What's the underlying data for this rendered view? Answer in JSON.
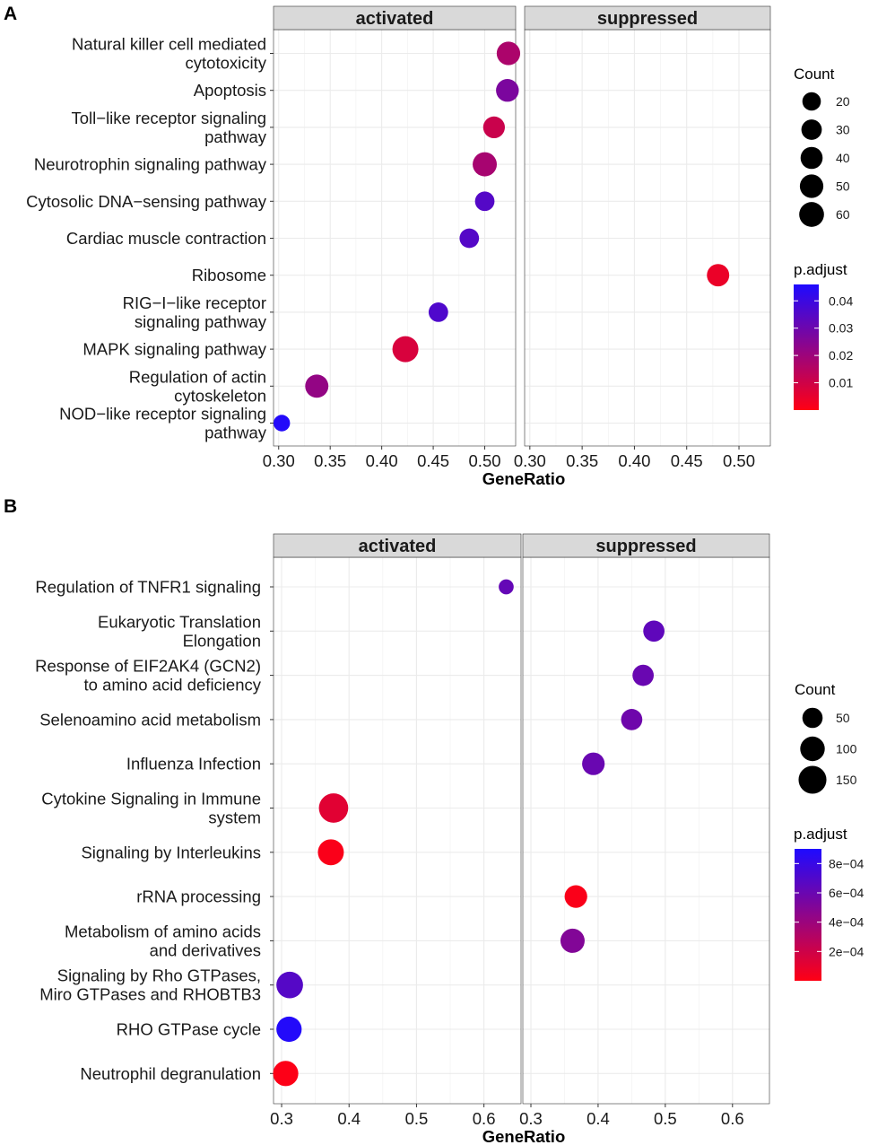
{
  "chart_data": [
    {
      "type": "scatter",
      "panel": "A",
      "facets": [
        "activated",
        "suppressed"
      ],
      "xlabel": "GeneRatio",
      "xticks": [
        "0.30",
        "0.35",
        "0.40",
        "0.45",
        "0.50"
      ],
      "xticks_values": [
        0.3,
        0.35,
        0.4,
        0.45,
        0.5
      ],
      "xlim": [
        0.295,
        0.53
      ],
      "categories": [
        [
          "Natural killer cell mediated",
          "cytotoxicity"
        ],
        [
          "Apoptosis"
        ],
        [
          "Toll−like receptor signaling",
          "pathway"
        ],
        [
          "Neurotrophin signaling pathway"
        ],
        [
          "Cytosolic DNA−sensing pathway"
        ],
        [
          "Cardiac muscle contraction"
        ],
        [
          "Ribosome"
        ],
        [
          "RIG−I−like receptor",
          "signaling pathway"
        ],
        [
          "MAPK signaling pathway"
        ],
        [
          "Regulation of actin",
          "cytoskeleton"
        ],
        [
          "NOD−like receptor signaling",
          "pathway"
        ]
      ],
      "points": [
        {
          "facet": "activated",
          "cat": 0,
          "x": 0.523,
          "count": 50,
          "padj": 0.017
        },
        {
          "facet": "activated",
          "cat": 1,
          "x": 0.522,
          "count": 45,
          "padj": 0.027
        },
        {
          "facet": "activated",
          "cat": 2,
          "x": 0.509,
          "count": 38,
          "padj": 0.011
        },
        {
          "facet": "activated",
          "cat": 3,
          "x": 0.5,
          "count": 55,
          "padj": 0.018
        },
        {
          "facet": "activated",
          "cat": 4,
          "x": 0.5,
          "count": 25,
          "padj": 0.035
        },
        {
          "facet": "activated",
          "cat": 5,
          "x": 0.485,
          "count": 25,
          "padj": 0.035
        },
        {
          "facet": "suppressed",
          "cat": 6,
          "x": 0.48,
          "count": 42,
          "padj": 0.004
        },
        {
          "facet": "activated",
          "cat": 7,
          "x": 0.455,
          "count": 25,
          "padj": 0.036
        },
        {
          "facet": "activated",
          "cat": 8,
          "x": 0.423,
          "count": 70,
          "padj": 0.008
        },
        {
          "facet": "activated",
          "cat": 9,
          "x": 0.337,
          "count": 48,
          "padj": 0.022
        },
        {
          "facet": "activated",
          "cat": 10,
          "x": 0.303,
          "count": 12,
          "padj": 0.045
        }
      ],
      "legend_count": {
        "title": "Count",
        "items": [
          {
            "label": "20",
            "v": 20
          },
          {
            "label": "30",
            "v": 30
          },
          {
            "label": "40",
            "v": 40
          },
          {
            "label": "50",
            "v": 50
          },
          {
            "label": "60",
            "v": 60
          }
        ],
        "max": 70
      },
      "legend_padj": {
        "title": "p.adjust",
        "ticks": [
          {
            "label": "0.04",
            "v": 0.04
          },
          {
            "label": "0.03",
            "v": 0.03
          },
          {
            "label": "0.02",
            "v": 0.02
          },
          {
            "label": "0.01",
            "v": 0.01
          }
        ],
        "min": 0.0,
        "max": 0.046
      }
    },
    {
      "type": "scatter",
      "panel": "B",
      "facets": [
        "activated",
        "suppressed"
      ],
      "xlabel": "GeneRatio",
      "xticks": [
        "0.3",
        "0.4",
        "0.5",
        "0.6"
      ],
      "xticks_values": [
        0.3,
        0.4,
        0.5,
        0.6
      ],
      "xlim": [
        0.288,
        0.655
      ],
      "categories": [
        [
          "Regulation of TNFR1 signaling"
        ],
        [
          "Eukaryotic Translation",
          "Elongation"
        ],
        [
          "Response of EIF2AK4 (GCN2)",
          "to amino acid deficiency"
        ],
        [
          "Selenoamino acid metabolism"
        ],
        [
          "Influenza Infection"
        ],
        [
          "Cytokine Signaling in Immune",
          "system"
        ],
        [
          "Signaling by Interleukins"
        ],
        [
          "rRNA processing"
        ],
        [
          "Metabolism of amino acids",
          "and derivatives"
        ],
        [
          "Signaling by Rho GTPases,",
          "Miro GTPases and RHOBTB3"
        ],
        [
          "RHO GTPase cycle"
        ],
        [
          "Neutrophil degranulation"
        ]
      ],
      "points": [
        {
          "facet": "activated",
          "cat": 0,
          "x": 0.633,
          "count": 12,
          "padj": 0.00062
        },
        {
          "facet": "suppressed",
          "cat": 1,
          "x": 0.483,
          "count": 60,
          "padj": 0.00064
        },
        {
          "facet": "suppressed",
          "cat": 2,
          "x": 0.467,
          "count": 60,
          "padj": 0.0006
        },
        {
          "facet": "suppressed",
          "cat": 3,
          "x": 0.45,
          "count": 60,
          "padj": 0.00058
        },
        {
          "facet": "suppressed",
          "cat": 4,
          "x": 0.393,
          "count": 75,
          "padj": 0.0006
        },
        {
          "facet": "activated",
          "cat": 5,
          "x": 0.377,
          "count": 175,
          "padj": 0.00012
        },
        {
          "facet": "activated",
          "cat": 6,
          "x": 0.373,
          "count": 120,
          "padj": 2e-05
        },
        {
          "facet": "suppressed",
          "cat": 7,
          "x": 0.367,
          "count": 75,
          "padj": 2e-05
        },
        {
          "facet": "suppressed",
          "cat": 8,
          "x": 0.362,
          "count": 95,
          "padj": 0.0005
        },
        {
          "facet": "activated",
          "cat": 9,
          "x": 0.312,
          "count": 130,
          "padj": 0.00068
        },
        {
          "facet": "activated",
          "cat": 10,
          "x": 0.311,
          "count": 110,
          "padj": 0.00088
        },
        {
          "facet": "activated",
          "cat": 11,
          "x": 0.306,
          "count": 110,
          "padj": 1e-05
        }
      ],
      "legend_count": {
        "title": "Count",
        "items": [
          {
            "label": "50",
            "v": 50
          },
          {
            "label": "100",
            "v": 100
          },
          {
            "label": "150",
            "v": 150
          }
        ],
        "max": 180
      },
      "legend_padj": {
        "title": "p.adjust",
        "ticks": [
          {
            "label": "8e−04",
            "v": 0.0008
          },
          {
            "label": "6e−04",
            "v": 0.0006
          },
          {
            "label": "4e−04",
            "v": 0.0004
          },
          {
            "label": "2e−04",
            "v": 0.0002
          }
        ],
        "min": 0.0,
        "max": 0.0009
      }
    }
  ]
}
